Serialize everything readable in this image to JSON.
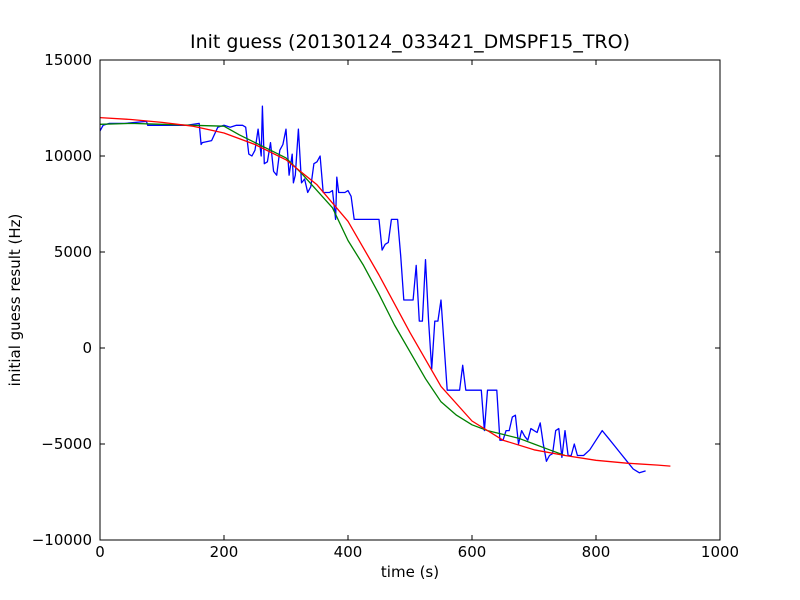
{
  "chart_data": {
    "type": "line",
    "title": "Init guess (20130124_033421_DMSPF15_TRO)",
    "xlabel": "time (s)",
    "ylabel": "initial guess result (Hz)",
    "xlim": [
      0,
      1000
    ],
    "ylim": [
      -10000,
      15000
    ],
    "x_ticks": [
      0,
      200,
      400,
      600,
      800,
      1000
    ],
    "x_tick_labels": [
      "0",
      "200",
      "400",
      "600",
      "800",
      "1000"
    ],
    "y_ticks": [
      -10000,
      -5000,
      0,
      5000,
      10000,
      15000
    ],
    "y_tick_labels": [
      "−10000",
      "−5000",
      "0",
      "5000",
      "10000",
      "15000"
    ],
    "grid": false,
    "legend": false,
    "series": [
      {
        "color": "#0000ff",
        "x": [
          0,
          5,
          15,
          40,
          75,
          77,
          100,
          110,
          125,
          140,
          160,
          163,
          165,
          180,
          190,
          200,
          210,
          220,
          230,
          235,
          240,
          245,
          250,
          255,
          260,
          262,
          265,
          270,
          275,
          280,
          285,
          290,
          295,
          300,
          305,
          310,
          312,
          315,
          320,
          325,
          330,
          335,
          340,
          345,
          350,
          355,
          360,
          362,
          365,
          370,
          375,
          380,
          382,
          385,
          390,
          395,
          400,
          405,
          410,
          415,
          420,
          425,
          430,
          440,
          450,
          455,
          460,
          465,
          470,
          475,
          480,
          485,
          490,
          495,
          500,
          505,
          510,
          515,
          520,
          525,
          530,
          535,
          540,
          545,
          550,
          560,
          570,
          575,
          580,
          585,
          590,
          595,
          600,
          605,
          610,
          615,
          620,
          625,
          630,
          635,
          640,
          645,
          650,
          655,
          660,
          665,
          670,
          675,
          680,
          685,
          690,
          695,
          700,
          705,
          710,
          715,
          720,
          725,
          730,
          735,
          740,
          745,
          750,
          755,
          760,
          765,
          770,
          780,
          790,
          800,
          810,
          820,
          830,
          840,
          850,
          860,
          870,
          880
        ],
        "y": [
          11300,
          11600,
          11700,
          11700,
          11800,
          11600,
          11600,
          11600,
          11600,
          11600,
          11700,
          10600,
          10700,
          10800,
          11500,
          11600,
          11500,
          11600,
          11600,
          11500,
          10100,
          10000,
          10300,
          11400,
          10000,
          12600,
          9600,
          9700,
          10700,
          9200,
          9000,
          10300,
          10600,
          11400,
          9000,
          10100,
          8600,
          9000,
          11400,
          8600,
          8800,
          8100,
          8400,
          9600,
          9700,
          10000,
          8100,
          8100,
          8100,
          8100,
          8200,
          6700,
          8900,
          8100,
          8100,
          8100,
          8200,
          7900,
          6700,
          6700,
          6700,
          6700,
          6700,
          6700,
          6700,
          5100,
          5400,
          5500,
          6700,
          6700,
          6700,
          4800,
          2500,
          2500,
          2500,
          2500,
          4300,
          1400,
          1400,
          4600,
          1400,
          -1100,
          1400,
          1400,
          2500,
          -2200,
          -2200,
          -2200,
          -2200,
          -900,
          -2200,
          -2200,
          -2200,
          -2200,
          -2200,
          -2200,
          -4300,
          -2200,
          -2200,
          -2200,
          -2200,
          -4800,
          -4800,
          -4300,
          -4300,
          -3600,
          -3500,
          -5000,
          -4300,
          -4600,
          -4800,
          -4200,
          -4300,
          -4400,
          -3900,
          -5000,
          -5900,
          -5600,
          -5500,
          -4300,
          -4200,
          -5700,
          -4300,
          -5600,
          -5600,
          -5000,
          -5600,
          -5600,
          -5300,
          -4800,
          -4300,
          -4700,
          -5100,
          -5500,
          -5900,
          -6300,
          -6500,
          -6400
        ],
        "fixed_dump": "see script"
      },
      {
        "color": "#008000",
        "x": [
          0,
          50,
          100,
          150,
          200,
          225,
          250,
          275,
          300,
          325,
          350,
          375,
          400,
          425,
          450,
          475,
          500,
          525,
          550,
          575,
          600,
          625,
          650,
          675,
          700,
          725,
          750
        ],
        "y": [
          11650,
          11700,
          11650,
          11600,
          11550,
          11100,
          10700,
          10300,
          9900,
          9100,
          8200,
          7300,
          5600,
          4300,
          2800,
          1200,
          -200,
          -1600,
          -2800,
          -3500,
          -4000,
          -4300,
          -4500,
          -4700,
          -5000,
          -5300,
          -5600
        ]
      },
      {
        "color": "#ff0000",
        "x": [
          0,
          50,
          100,
          150,
          200,
          250,
          300,
          350,
          400,
          450,
          500,
          550,
          600,
          650,
          700,
          750,
          800,
          850,
          900,
          920
        ],
        "y": [
          12000,
          11900,
          11750,
          11550,
          11200,
          10600,
          9800,
          8500,
          6600,
          3800,
          800,
          -2000,
          -3800,
          -4800,
          -5300,
          -5600,
          -5850,
          -6000,
          -6100,
          -6150
        ]
      }
    ]
  }
}
